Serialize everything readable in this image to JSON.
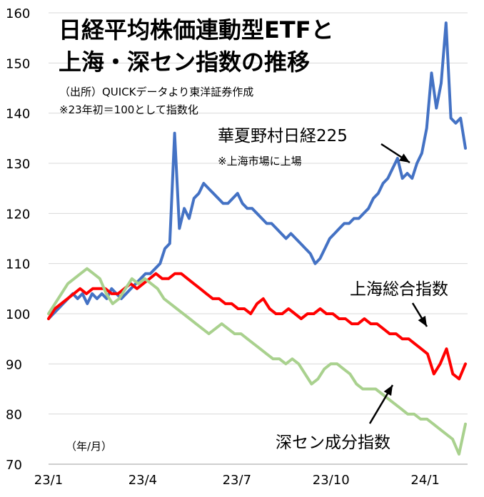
{
  "chart_data": {
    "type": "line",
    "title_lines": [
      "日経平均株価連動型ETFと",
      "上海・深セン指数の推移"
    ],
    "notes": [
      "（出所）QUICKデータより東洋証券作成",
      "※23年初＝100として指数化"
    ],
    "xunit": "（年/月）",
    "x_tick_labels": [
      "23/1",
      "23/4",
      "23/7",
      "23/10",
      "24/1"
    ],
    "y_tick_labels": [
      "70",
      "80",
      "90",
      "100",
      "110",
      "120",
      "130",
      "140",
      "150",
      "160"
    ],
    "ylim": [
      70,
      160
    ],
    "grid": "horizontal",
    "series": [
      {
        "name": "華夏野村日経225",
        "sublabel": "※上海市場に上場",
        "color": "#4472C4",
        "values": [
          99,
          100,
          101,
          102,
          103,
          104,
          103,
          104,
          102,
          104,
          103,
          104,
          103,
          105,
          104,
          103,
          104,
          105,
          106,
          107,
          108,
          108,
          109,
          110,
          113,
          114,
          136,
          117,
          121,
          119,
          123,
          124,
          126,
          125,
          124,
          123,
          122,
          122,
          123,
          124,
          122,
          121,
          121,
          120,
          119,
          118,
          118,
          117,
          116,
          115,
          116,
          115,
          114,
          113,
          112,
          110,
          111,
          113,
          115,
          116,
          117,
          118,
          118,
          119,
          119,
          120,
          121,
          123,
          124,
          126,
          127,
          129,
          131,
          127,
          128,
          127,
          130,
          132,
          137,
          148,
          141,
          146,
          158,
          139,
          138,
          139,
          133
        ]
      },
      {
        "name": "上海総合指数",
        "color": "#FF0000",
        "values": [
          99,
          101,
          102,
          103,
          104,
          105,
          104,
          105,
          105,
          105,
          104,
          104,
          105,
          106,
          105,
          106,
          107,
          108,
          107,
          107,
          108,
          108,
          107,
          106,
          105,
          104,
          103,
          103,
          102,
          102,
          101,
          101,
          100,
          102,
          103,
          101,
          100,
          100,
          101,
          100,
          99,
          100,
          100,
          101,
          100,
          100,
          99,
          99,
          98,
          98,
          99,
          98,
          98,
          97,
          96,
          96,
          95,
          95,
          94,
          93,
          92,
          88,
          90,
          93,
          88,
          87,
          90
        ]
      },
      {
        "name": "深セン成分指数",
        "color": "#A9D18E",
        "values": [
          100,
          102,
          104,
          106,
          107,
          108,
          109,
          108,
          107,
          104,
          102,
          103,
          105,
          107,
          106,
          107,
          106,
          105,
          103,
          102,
          101,
          100,
          99,
          98,
          97,
          96,
          97,
          98,
          97,
          96,
          96,
          95,
          94,
          93,
          92,
          91,
          91,
          90,
          91,
          90,
          88,
          86,
          87,
          89,
          90,
          90,
          89,
          88,
          86,
          85,
          85,
          85,
          84,
          83,
          82,
          81,
          80,
          80,
          79,
          79,
          78,
          77,
          76,
          75,
          72,
          78
        ]
      }
    ]
  }
}
